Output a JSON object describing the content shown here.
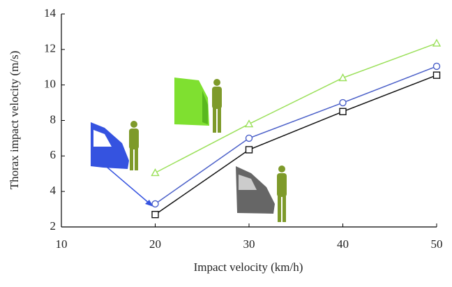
{
  "chart_data": {
    "type": "line",
    "xlabel": "Impact velocity (km/h)",
    "ylabel": "Thorax impact velocity (m/s)",
    "x": [
      20,
      30,
      40,
      50
    ],
    "series": [
      {
        "color": "#9be05a",
        "marker": "triangle",
        "values": [
          5.05,
          7.8,
          10.4,
          12.35
        ]
      },
      {
        "color": "#4a5fc8",
        "marker": "circle",
        "values": [
          3.3,
          7.0,
          9.0,
          11.05
        ]
      },
      {
        "color": "#111111",
        "marker": "square",
        "values": [
          2.7,
          6.35,
          8.5,
          10.55
        ]
      }
    ],
    "xlim": [
      10,
      50
    ],
    "xticks": [
      10,
      20,
      30,
      40,
      50
    ],
    "ylim": [
      2,
      14
    ],
    "yticks": [
      2,
      4,
      6,
      8,
      10,
      12,
      14
    ],
    "grid": false
  }
}
